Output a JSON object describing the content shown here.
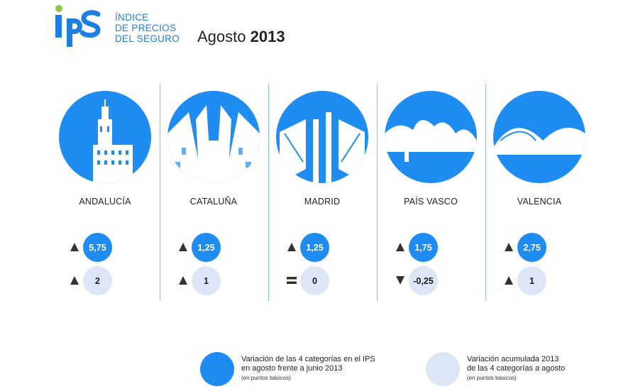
{
  "header": {
    "brand_lines": [
      "ÍNDICE",
      "DE PRECIOS",
      "DEL SEGURO"
    ],
    "period_month": "Agosto",
    "period_year": "2013",
    "logo_text": "IPS"
  },
  "colors": {
    "primary": "#1e8cf0",
    "secondary": "#dde6f7",
    "logo_green": "#8dc63f",
    "indicator": "#333333"
  },
  "regions": [
    {
      "name": "ANDALUCÍA",
      "ips_value": "5,75",
      "ips_trend": "up",
      "acc_value": "2",
      "acc_trend": "up",
      "image_icon": "tower-image"
    },
    {
      "name": "CATALUÑA",
      "ips_value": "1,25",
      "ips_trend": "up",
      "acc_value": "1",
      "acc_trend": "up",
      "image_icon": "cathedral-image"
    },
    {
      "name": "MADRID",
      "ips_value": "1,25",
      "ips_trend": "up",
      "acc_value": "0",
      "acc_trend": "equal",
      "image_icon": "towers-image"
    },
    {
      "name": "PAÍS VASCO",
      "ips_value": "1,75",
      "ips_trend": "up",
      "acc_value": "-0,25",
      "acc_trend": "down",
      "image_icon": "museum-image"
    },
    {
      "name": "VALENCIA",
      "ips_value": "2,75",
      "ips_trend": "up",
      "acc_value": "1",
      "acc_trend": "up",
      "image_icon": "arts-city-image"
    }
  ],
  "legend": [
    {
      "line1": "Variación de las 4 categorías en el IPS",
      "line2": "en agosto frente a junio 2013",
      "note": "(en puntos básicos)"
    },
    {
      "line1": "Variación acumulada 2013",
      "line2": "de las 4 categorías a agosto",
      "note": "(en puntos básicos)"
    }
  ]
}
